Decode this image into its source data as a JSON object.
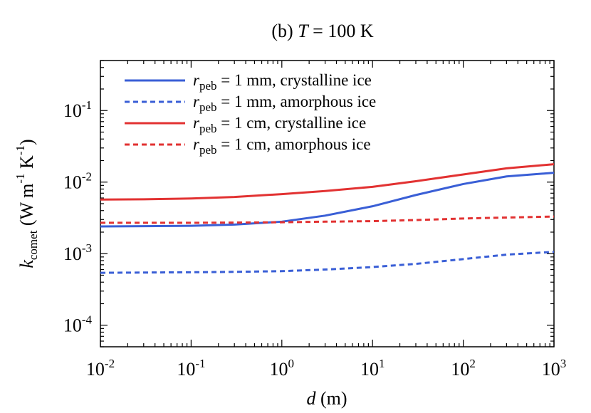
{
  "chart_data": {
    "type": "line",
    "title_prefix": "(b) ",
    "title_var": "T",
    "title_suffix": " = 100 K",
    "xlabel_var": "d",
    "xlabel_unit": " (m)",
    "ylabel_var": "k",
    "ylabel_sub": "comet",
    "ylabel_unit": "(W m",
    "ylabel_unit2": " K",
    "ylabel_close": ")",
    "ylabel_exp": "-1",
    "x_scale": "log",
    "y_scale": "log",
    "xlim": [
      0.01,
      1000
    ],
    "ylim": [
      5e-05,
      0.5
    ],
    "x_ticks": [
      {
        "value": 0.01,
        "base": "10",
        "exp": "-2"
      },
      {
        "value": 0.1,
        "base": "10",
        "exp": "-1"
      },
      {
        "value": 1,
        "base": "10",
        "exp": "0"
      },
      {
        "value": 10,
        "base": "10",
        "exp": "1"
      },
      {
        "value": 100,
        "base": "10",
        "exp": "2"
      },
      {
        "value": 1000,
        "base": "10",
        "exp": "3"
      }
    ],
    "y_ticks": [
      {
        "value": 0.0001,
        "base": "10",
        "exp": "-4"
      },
      {
        "value": 0.001,
        "base": "10",
        "exp": "-3"
      },
      {
        "value": 0.01,
        "base": "10",
        "exp": "-2"
      },
      {
        "value": 0.1,
        "base": "10",
        "exp": "-1"
      }
    ],
    "grid": false,
    "legend_position": "top-left",
    "series": [
      {
        "label_var": "r",
        "label_sub": "peb",
        "label_rest": " = 1 mm, crystalline ice",
        "color": "#3a5fd6",
        "dash": "solid",
        "x": [
          0.01,
          0.03,
          0.1,
          0.3,
          1,
          3,
          10,
          30,
          100,
          300,
          1000
        ],
        "y": [
          0.0024,
          0.00242,
          0.00245,
          0.00255,
          0.0028,
          0.0034,
          0.0046,
          0.0066,
          0.0094,
          0.012,
          0.0135
        ]
      },
      {
        "label_var": "r",
        "label_sub": "peb",
        "label_rest": " = 1 mm, amorphous ice",
        "color": "#3a5fd6",
        "dash": "dashed",
        "x": [
          0.01,
          0.03,
          0.1,
          0.3,
          1,
          3,
          10,
          30,
          100,
          300,
          1000
        ],
        "y": [
          0.00054,
          0.000545,
          0.00055,
          0.000557,
          0.00057,
          0.0006,
          0.00065,
          0.00072,
          0.00084,
          0.00097,
          0.00106
        ]
      },
      {
        "label_var": "r",
        "label_sub": "peb",
        "label_rest": " = 1 cm, crystalline ice",
        "color": "#e23232",
        "dash": "solid",
        "x": [
          0.01,
          0.03,
          0.1,
          0.3,
          1,
          3,
          10,
          30,
          100,
          300,
          1000
        ],
        "y": [
          0.0057,
          0.00575,
          0.0059,
          0.0062,
          0.0068,
          0.0075,
          0.0086,
          0.0103,
          0.0128,
          0.0156,
          0.0178
        ]
      },
      {
        "label_var": "r",
        "label_sub": "peb",
        "label_rest": " = 1 cm, amorphous ice",
        "color": "#e23232",
        "dash": "dashed",
        "x": [
          0.01,
          0.03,
          0.1,
          0.3,
          1,
          3,
          10,
          30,
          100,
          300,
          1000
        ],
        "y": [
          0.0027,
          0.0027,
          0.0027,
          0.00272,
          0.00275,
          0.0028,
          0.00285,
          0.00295,
          0.0031,
          0.0032,
          0.0033
        ]
      }
    ]
  }
}
